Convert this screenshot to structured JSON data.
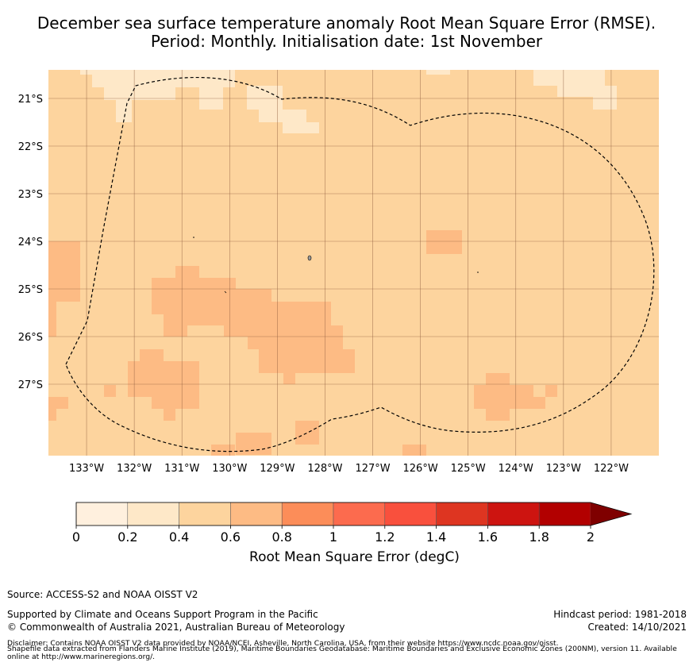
{
  "title": {
    "line1": "December sea surface temperature anomaly Root Mean Square Error (RMSE).",
    "line2": "Period: Monthly. Initialisation date: 1st November"
  },
  "map": {
    "lat_labels": [
      "21°S",
      "22°S",
      "23°S",
      "24°S",
      "25°S",
      "26°S",
      "27°S"
    ],
    "lon_labels": [
      "133°W",
      "132°W",
      "131°W",
      "130°W",
      "129°W",
      "128°W",
      "127°W",
      "126°W",
      "125°W",
      "124°W",
      "123°W",
      "122°W"
    ],
    "lon_range": [
      -133.8,
      -121.0
    ],
    "lat_range": [
      -28.5,
      -20.4
    ],
    "background_bin_color": "#fdd49e",
    "light_bin_color": "#fee8c8",
    "mid_bin_color": "#fdbb84",
    "boundary_style": "dashed"
  },
  "colorbar": {
    "ticks": [
      "0",
      "0.2",
      "0.4",
      "0.6",
      "0.8",
      "1",
      "1.2",
      "1.4",
      "1.6",
      "1.8",
      "2"
    ],
    "colors": [
      "#fff0de",
      "#fee8c8",
      "#fdd49e",
      "#fdbb84",
      "#fc8d59",
      "#fc6b4e",
      "#f9503d",
      "#de3521",
      "#cd1410",
      "#b20000"
    ],
    "extend_color": "#7f0000",
    "label": "Root Mean Square Error (degC)"
  },
  "footer": {
    "source": "Source: ACCESS-S2 and NOAA OISST V2",
    "supported": "Supported by Climate and Oceans Support Program in the Pacific",
    "copyright": "© Commonwealth of Australia 2021, Australian Bureau of Meteorology",
    "hindcast": "Hindcast period: 1981-2018",
    "created": "Created: 14/10/2021",
    "disclaimer1": "Disclaimer: Contains NOAA OISST V2 data provided by NOAA/NCEI, Asheville, North Carolina, USA, from their website https://www.ncdc.noaa.gov/oisst.",
    "disclaimer2": "Shapefile data extracted from Flanders Marine Institute (2019), Maritime Boundaries Geodatabase: Maritime Boundaries and Exclusive Economic Zones (200NM), version 11. Available",
    "disclaimer3": "online at http://www.marineregions.org/."
  }
}
